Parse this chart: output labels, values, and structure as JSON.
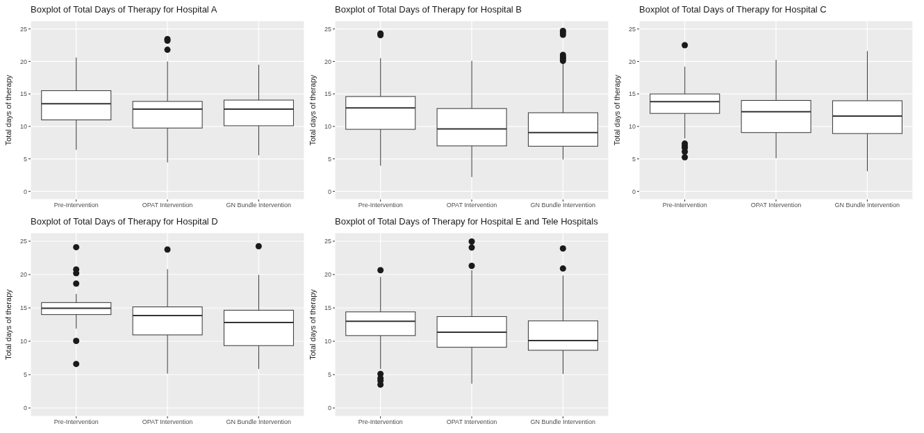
{
  "chart_data": [
    {
      "type": "box",
      "title": "Boxplot of Total Days of Therapy for Hospital A",
      "ylabel": "Total days of therapy",
      "categories": [
        "Pre-Intervention",
        "OPAT Intervention",
        "GN Bundle Intervention"
      ],
      "ylim": [
        -1.25,
        26.25
      ],
      "yticks": [
        0,
        5,
        10,
        15,
        20,
        25
      ],
      "grid": true,
      "boxes": [
        {
          "low": 6.4,
          "q1": 11.0,
          "median": 13.5,
          "q3": 15.5,
          "high": 20.6
        },
        {
          "low": 4.45,
          "q1": 9.75,
          "median": 12.65,
          "q3": 13.85,
          "high": 20.0,
          "outliers": [
            21.8,
            23.2,
            23.45
          ]
        },
        {
          "low": 5.55,
          "q1": 10.1,
          "median": 12.65,
          "q3": 14.05,
          "high": 19.5
        }
      ]
    },
    {
      "type": "box",
      "title": "Boxplot of Total Days of Therapy for Hospital B",
      "ylabel": "Total days of therapy",
      "categories": [
        "Pre-Intervention",
        "OPAT Intervention",
        "GN Bundle Intervention"
      ],
      "ylim": [
        -1.25,
        26.25
      ],
      "yticks": [
        0,
        5,
        10,
        15,
        20,
        25
      ],
      "grid": true,
      "boxes": [
        {
          "low": 3.95,
          "q1": 9.55,
          "median": 12.85,
          "q3": 14.6,
          "high": 20.5,
          "outliers": [
            24.05,
            24.3
          ]
        },
        {
          "low": 2.2,
          "q1": 7.0,
          "median": 9.6,
          "q3": 12.75,
          "high": 20.1
        },
        {
          "low": 4.9,
          "q1": 6.95,
          "median": 9.05,
          "q3": 12.1,
          "high": 19.8,
          "outliers": [
            20.1,
            20.45,
            20.7,
            21.0,
            24.1,
            24.45,
            24.7
          ]
        }
      ]
    },
    {
      "type": "box",
      "title": "Boxplot of Total Days of Therapy for Hospital C",
      "ylabel": "Total days of therapy",
      "categories": [
        "Pre-Intervention",
        "OPAT Intervention",
        "GN Bundle Intervention"
      ],
      "ylim": [
        -1.25,
        26.25
      ],
      "yticks": [
        0,
        5,
        10,
        15,
        20,
        25
      ],
      "grid": true,
      "boxes": [
        {
          "low": 8.15,
          "q1": 12.0,
          "median": 13.8,
          "q3": 15.0,
          "high": 19.2,
          "outliers": [
            5.25,
            6.1,
            6.7,
            7.0,
            7.35,
            22.5
          ]
        },
        {
          "low": 5.1,
          "q1": 9.05,
          "median": 12.25,
          "q3": 14.0,
          "high": 20.25
        },
        {
          "low": 3.1,
          "q1": 8.9,
          "median": 11.6,
          "q3": 13.95,
          "high": 21.6
        }
      ]
    },
    {
      "type": "box",
      "title": "Boxplot of Total Days of Therapy for Hospital D",
      "ylabel": "Total days of therapy",
      "categories": [
        "Pre-Intervention",
        "OPAT Intervention",
        "GN Bundle Intervention"
      ],
      "ylim": [
        -1.25,
        26.25
      ],
      "yticks": [
        0,
        5,
        10,
        15,
        20,
        25
      ],
      "grid": true,
      "boxes": [
        {
          "low": 11.9,
          "q1": 14.0,
          "median": 14.95,
          "q3": 15.8,
          "high": 17.1,
          "outliers": [
            6.6,
            10.05,
            18.65,
            20.2,
            20.75,
            24.1
          ]
        },
        {
          "low": 5.15,
          "q1": 10.95,
          "median": 13.85,
          "q3": 15.15,
          "high": 20.8,
          "outliers": [
            23.75
          ]
        },
        {
          "low": 5.85,
          "q1": 9.35,
          "median": 12.8,
          "q3": 14.65,
          "high": 19.95,
          "outliers": [
            24.25
          ]
        }
      ]
    },
    {
      "type": "box",
      "title": "Boxplot of Total Days of Therapy for Hospital E and Tele Hospitals",
      "ylabel": "Total days of therapy",
      "categories": [
        "Pre-Intervention",
        "OPAT Intervention",
        "GN Bundle Intervention"
      ],
      "ylim": [
        -1.25,
        26.25
      ],
      "yticks": [
        0,
        5,
        10,
        15,
        20,
        25
      ],
      "grid": true,
      "boxes": [
        {
          "low": 5.85,
          "q1": 10.85,
          "median": 13.0,
          "q3": 14.4,
          "high": 19.65,
          "outliers": [
            3.5,
            4.1,
            4.45,
            5.1,
            20.65
          ]
        },
        {
          "low": 3.65,
          "q1": 9.1,
          "median": 11.35,
          "q3": 13.7,
          "high": 20.65,
          "outliers": [
            21.3,
            24.05,
            24.95
          ]
        },
        {
          "low": 5.1,
          "q1": 8.65,
          "median": 10.1,
          "q3": 13.05,
          "high": 19.85,
          "outliers": [
            20.9,
            23.9
          ]
        }
      ]
    }
  ]
}
